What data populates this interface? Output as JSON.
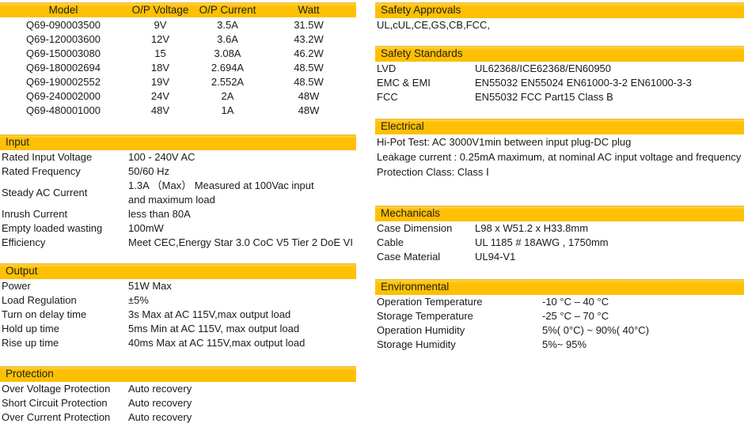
{
  "colors": {
    "section_header_bg": "#FFC000",
    "section_header_text": "#1F1F1F",
    "body_text": "#1A1A1A",
    "background": "#FFFFFF"
  },
  "model_table": {
    "headers": [
      "Model",
      "O/P Voltage",
      "O/P Current",
      "Watt"
    ],
    "rows": [
      [
        "Q69-090003500",
        "9V",
        "3.5A",
        "31.5W"
      ],
      [
        "Q69-120003600",
        "12V",
        "3.6A",
        "43.2W"
      ],
      [
        "Q69-150003080",
        "15",
        "3.08A",
        "46.2W"
      ],
      [
        "Q69-180002694",
        "18V",
        "2.694A",
        "48.5W"
      ],
      [
        "Q69-190002552",
        "19V",
        "2.552A",
        "48.5W"
      ],
      [
        "Q69-240002000",
        "24V",
        "2A",
        "48W"
      ],
      [
        "Q69-480001000",
        "48V",
        "1A",
        "48W"
      ]
    ]
  },
  "sections": {
    "input": {
      "title": "Input",
      "rows": [
        {
          "label": "Rated Input Voltage",
          "value": "100 - 240V AC"
        },
        {
          "label": "Rated Frequency",
          "value": "50/60 Hz"
        },
        {
          "label": "Steady AC Current",
          "value": "1.3A （Max） Measured at 100Vac input\nand maximum load"
        },
        {
          "label": "Inrush Current",
          "value": "less than 80A"
        },
        {
          "label": "Empty loaded wasting",
          "value": "100mW"
        },
        {
          "label": "Efficiency",
          "value": "Meet CEC,Energy Star 3.0 CoC V5 Tier 2 DoE VI"
        }
      ]
    },
    "output": {
      "title": "Output",
      "rows": [
        {
          "label": "Power",
          "value": "51W Max"
        },
        {
          "label": "Load Regulation",
          "value": "±5%"
        },
        {
          "label": "Turn on delay time",
          "value": "3s Max at AC 115V,max output load"
        },
        {
          "label": "Hold up time",
          "value": "5ms Min at AC 115V, max output load"
        },
        {
          "label": "Rise up time",
          "value": "40ms Max at AC 115V,max output load"
        }
      ]
    },
    "protection": {
      "title": "Protection",
      "rows": [
        {
          "label": "Over Voltage Protection",
          "value": "Auto recovery"
        },
        {
          "label": "Short Circuit Protection",
          "value": "Auto recovery"
        },
        {
          "label": "Over Current Protection",
          "value": "Auto recovery"
        }
      ]
    },
    "safety_approvals": {
      "title": "Safety Approvals",
      "lines": [
        "UL,cUL,CE,GS,CB,FCC,"
      ]
    },
    "safety_standards": {
      "title": "Safety Standards",
      "rows": [
        {
          "label": "LVD",
          "value": "UL62368/ICE62368/EN60950"
        },
        {
          "label": "EMC & EMI",
          "value": "EN55032 EN55024 EN61000-3-2 EN61000-3-3"
        },
        {
          "label": "FCC",
          "value": "EN55032 FCC Part15 Class B"
        }
      ]
    },
    "electrical": {
      "title": "Electrical",
      "lines": [
        "Hi-Pot Test: AC 3000V1min between input plug-DC plug",
        "Leakage current : 0.25mA maximum, at nominal AC input voltage and frequency",
        "Protection Class: Class Ⅰ"
      ]
    },
    "mechanicals": {
      "title": "Mechanicals",
      "rows": [
        {
          "label": "Case Dimension",
          "value": "L98 x W51.2 x H33.8mm"
        },
        {
          "label": "Cable",
          "value": "UL 1185 # 18AWG , 1750mm"
        },
        {
          "label": "Case Material",
          "value": "UL94-V1"
        }
      ]
    },
    "environmental": {
      "title": "Environmental",
      "rows": [
        {
          "label": "Operation Temperature",
          "value": "-10 °C – 40 °C"
        },
        {
          "label": "Storage Temperature",
          "value": "-25 °C – 70 °C"
        },
        {
          "label": "Operation Humidity",
          "value": "5%( 0°C) ~ 90%( 40°C)"
        },
        {
          "label": "Storage Humidity",
          "value": "5%~ 95%"
        }
      ]
    }
  }
}
